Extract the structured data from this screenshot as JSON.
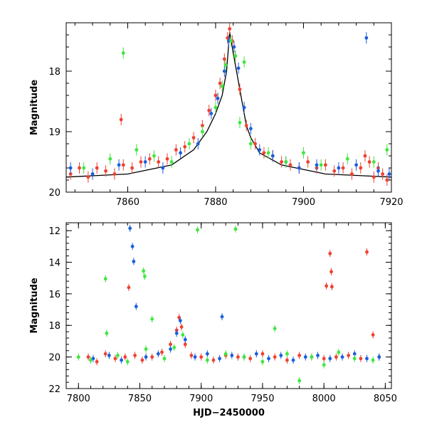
{
  "chart_data": [
    {
      "id": "top",
      "type": "scatter",
      "title": "",
      "xlabel": "",
      "ylabel": "Magnitude",
      "xlim": [
        7846,
        7920
      ],
      "ylim": [
        20,
        17.2
      ],
      "y_inverted": true,
      "xticks": [
        7860,
        7880,
        7900,
        7920
      ],
      "xtick_labels": [
        "7860",
        "7880",
        "7900",
        "7920"
      ],
      "yticks": [
        18,
        19,
        20
      ],
      "ytick_labels": [
        "18",
        "19",
        "20"
      ],
      "colors": {
        "blue": "#1a5fe0",
        "green": "#3ee63e",
        "red": "#f04030",
        "model": "#000000"
      },
      "model": {
        "x": [
          7846,
          7860,
          7870,
          7875,
          7878,
          7880,
          7881.5,
          7882.5,
          7883.2,
          7884,
          7885,
          7886,
          7887,
          7888,
          7890,
          7895,
          7905,
          7920
        ],
        "y": [
          19.75,
          19.7,
          19.55,
          19.3,
          19.0,
          18.7,
          18.4,
          18.0,
          17.35,
          17.7,
          18.1,
          18.5,
          18.9,
          19.1,
          19.35,
          19.55,
          19.7,
          19.75
        ]
      },
      "series": [
        {
          "color": "red",
          "x": [
            7847,
            7849,
            7851,
            7853,
            7855,
            7857,
            7859,
            7861,
            7863,
            7865,
            7867,
            7869,
            7871,
            7873,
            7875,
            7877,
            7878.5,
            7880,
            7881,
            7882,
            7882.7,
            7883.2,
            7883.8,
            7884.5,
            7885.5,
            7887,
            7889,
            7891,
            7893,
            7895,
            7897,
            7899,
            7901,
            7903,
            7905,
            7907,
            7909,
            7911,
            7913,
            7914,
            7915,
            7916,
            7917,
            7918,
            7919,
            7858.5
          ],
          "y": [
            19.7,
            19.6,
            19.75,
            19.6,
            19.65,
            19.7,
            19.55,
            19.6,
            19.5,
            19.45,
            19.5,
            19.45,
            19.3,
            19.25,
            19.1,
            18.9,
            18.65,
            18.4,
            18.2,
            17.8,
            17.45,
            17.3,
            17.5,
            17.75,
            18.3,
            18.9,
            19.2,
            19.35,
            19.4,
            19.5,
            19.55,
            19.6,
            19.5,
            19.6,
            19.55,
            19.65,
            19.6,
            19.7,
            19.6,
            19.4,
            19.5,
            19.75,
            19.6,
            19.7,
            19.8,
            18.8
          ]
        },
        {
          "color": "blue",
          "x": [
            7847,
            7852,
            7858,
            7864,
            7868,
            7872,
            7876,
            7879,
            7880.5,
            7882,
            7883,
            7884.2,
            7885.2,
            7886.5,
            7888,
            7890,
            7893,
            7896,
            7899,
            7903,
            7908,
            7912,
            7914.3,
            7917,
            7919.5
          ],
          "y": [
            19.6,
            19.7,
            19.55,
            19.5,
            19.6,
            19.35,
            19.2,
            18.7,
            18.45,
            18.0,
            17.5,
            17.6,
            17.95,
            18.6,
            18.95,
            19.3,
            19.4,
            19.5,
            19.6,
            19.55,
            19.6,
            19.55,
            17.45,
            19.65,
            19.7
          ]
        },
        {
          "color": "green",
          "x": [
            7850,
            7856,
            7859,
            7862,
            7866,
            7870,
            7874,
            7877,
            7880,
            7881.5,
            7882.3,
            7883.5,
            7884.5,
            7885.5,
            7886.5,
            7888,
            7892,
            7896,
            7900,
            7904,
            7910,
            7916,
            7919
          ],
          "y": [
            19.6,
            19.45,
            17.7,
            19.3,
            19.4,
            19.5,
            19.2,
            19.0,
            18.6,
            18.25,
            17.9,
            17.5,
            17.75,
            18.85,
            17.85,
            19.2,
            19.35,
            19.5,
            19.35,
            19.55,
            19.45,
            19.5,
            19.3
          ]
        }
      ]
    },
    {
      "id": "bottom",
      "type": "scatter",
      "title": "",
      "xlabel": "HJD−2450000",
      "ylabel": "Magnitude",
      "xlim": [
        7790,
        8055
      ],
      "ylim": [
        22,
        11.5
      ],
      "y_inverted": true,
      "xticks": [
        7800,
        7850,
        7900,
        7950,
        8000,
        8050
      ],
      "xtick_labels": [
        "7800",
        "7850",
        "7900",
        "7950",
        "8000",
        "8050"
      ],
      "yticks": [
        12,
        14,
        16,
        18,
        20,
        22
      ],
      "ytick_labels": [
        "12",
        "14",
        "16",
        "18",
        "20",
        "22"
      ],
      "colors": {
        "blue": "#1a5fe0",
        "green": "#3ee63e",
        "red": "#f04030"
      },
      "series": [
        {
          "color": "red",
          "x": [
            7808,
            7815,
            7822,
            7830,
            7838,
            7841,
            7846,
            7852,
            7860,
            7868,
            7875,
            7880,
            7882,
            7884,
            7887,
            7892,
            7900,
            7910,
            7920,
            7930,
            7940,
            7950,
            7960,
            7970,
            7980,
            7990,
            8000,
            8002,
            8005,
            8006,
            8006.5,
            8010,
            8020,
            8030,
            8035,
            8040,
            8045
          ],
          "y": [
            20.0,
            20.3,
            19.8,
            20.1,
            20.0,
            15.6,
            19.9,
            20.2,
            20.0,
            19.7,
            19.2,
            18.3,
            17.5,
            18.1,
            19.2,
            19.9,
            20.0,
            20.2,
            19.9,
            20.0,
            20.1,
            19.8,
            20.0,
            20.2,
            19.9,
            20.0,
            20.1,
            15.5,
            13.45,
            14.6,
            15.55,
            20.0,
            19.9,
            20.1,
            13.35,
            18.6,
            20.0
          ]
        },
        {
          "color": "blue",
          "x": [
            7812,
            7825,
            7835,
            7842,
            7844,
            7845,
            7847,
            7855,
            7865,
            7875,
            7880,
            7883,
            7887,
            7895,
            7905,
            7915,
            7917,
            7925,
            7935,
            7945,
            7955,
            7965,
            7975,
            7985,
            7995,
            8005,
            8015,
            8025,
            8035,
            8045
          ],
          "y": [
            20.1,
            19.9,
            20.2,
            11.85,
            13.0,
            13.95,
            16.8,
            20.0,
            19.8,
            19.5,
            18.5,
            17.7,
            18.9,
            20.0,
            19.8,
            20.1,
            17.45,
            19.9,
            20.0,
            19.8,
            20.1,
            19.9,
            20.2,
            20.0,
            19.9,
            20.1,
            20.0,
            19.8,
            20.1,
            20.0
          ]
        },
        {
          "color": "green",
          "x": [
            7800,
            7810,
            7822,
            7823,
            7832,
            7840,
            7853,
            7854,
            7855,
            7860,
            7870,
            7878,
            7885,
            7897,
            7905,
            7920,
            7928,
            7935,
            7950,
            7960,
            7970,
            7980,
            7990,
            8000,
            8012,
            8025,
            8040
          ],
          "y": [
            20.0,
            20.2,
            15.05,
            18.5,
            19.9,
            20.3,
            14.55,
            14.9,
            19.5,
            17.6,
            20.1,
            19.4,
            18.6,
            11.95,
            20.2,
            19.8,
            11.9,
            20.0,
            20.3,
            18.2,
            19.8,
            21.5,
            20.0,
            20.5,
            19.7,
            20.1,
            20.2
          ]
        }
      ]
    }
  ]
}
